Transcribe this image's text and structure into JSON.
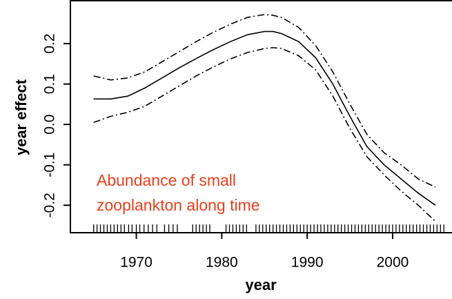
{
  "chart_data": {
    "type": "line",
    "x_label": "year",
    "y_label": "year effect",
    "annotation": [
      "Abundance of small",
      "zooplankton along time"
    ],
    "annotation_color": "#e8401c",
    "x": [
      1965,
      1967,
      1969,
      1971,
      1973,
      1975,
      1977,
      1979,
      1981,
      1983,
      1985,
      1986,
      1987,
      1989,
      1991,
      1993,
      1995,
      1997,
      1999,
      2001,
      2003,
      2005
    ],
    "series": [
      {
        "name": "fit",
        "color": "#000000",
        "dash": "solid",
        "values": [
          0.063,
          0.063,
          0.07,
          0.09,
          0.115,
          0.14,
          0.163,
          0.185,
          0.205,
          0.222,
          0.23,
          0.23,
          0.225,
          0.205,
          0.165,
          0.1,
          0.02,
          -0.055,
          -0.1,
          -0.135,
          -0.17,
          -0.2
        ]
      },
      {
        "name": "upper",
        "color": "#000000",
        "dash": "dashdot",
        "values": [
          0.12,
          0.11,
          0.115,
          0.13,
          0.155,
          0.18,
          0.205,
          0.228,
          0.248,
          0.265,
          0.272,
          0.27,
          0.265,
          0.24,
          0.195,
          0.13,
          0.05,
          -0.025,
          -0.07,
          -0.1,
          -0.135,
          -0.155
        ]
      },
      {
        "name": "lower",
        "color": "#000000",
        "dash": "dashdot",
        "values": [
          0.005,
          0.02,
          0.03,
          0.045,
          0.07,
          0.095,
          0.12,
          0.142,
          0.162,
          0.178,
          0.188,
          0.19,
          0.188,
          0.17,
          0.135,
          0.07,
          -0.01,
          -0.08,
          -0.125,
          -0.165,
          -0.2,
          -0.24
        ]
      }
    ],
    "rug": [
      1965,
      1965.4,
      1965.8,
      1966.2,
      1966.6,
      1967,
      1967.4,
      1967.8,
      1968.2,
      1968.6,
      1969.1,
      1969.5,
      1970,
      1970.4,
      1970.9,
      1971.4,
      1971.9,
      1972.4,
      1973.3,
      1973.8,
      1974.3,
      1974.8,
      1976.6,
      1977,
      1977.4,
      1977.8,
      1978.2,
      1978.6,
      1980.5,
      1980.9,
      1981.3,
      1981.7,
      1982.1,
      1982.5,
      1982.9,
      1984,
      1984.4,
      1984.8,
      1985.2,
      1985.6,
      1986,
      1986.4,
      1986.8,
      1987.2,
      1987.6,
      1988,
      1988.4,
      1988.8,
      1989.2,
      1989.6,
      1990,
      1990.4,
      1990.8,
      1991.2,
      1991.6,
      1992,
      1992.4,
      1992.8,
      1993.2,
      1993.6,
      1994,
      1994.4,
      1994.8,
      1995.2,
      1995.6,
      1996,
      1996.4,
      1996.8,
      1997.2,
      1997.6,
      1998,
      1998.4,
      1998.8,
      1999.2,
      1999.6,
      2000,
      2000.4,
      2000.8,
      2001.2,
      2001.6,
      2002,
      2002.4,
      2002.8,
      2003.2,
      2003.6,
      2004,
      2004.4,
      2004.8,
      2005.2,
      2005.6,
      2006
    ],
    "xlim": [
      1962.2,
      2006.95
    ],
    "ylim": [
      -0.268,
      0.308
    ],
    "xticks": [
      1970,
      1980,
      1990,
      2000
    ],
    "yticks": [
      0.2,
      0.1,
      {
        "value": 0,
        "label": "0.0"
      },
      -0.1,
      -0.2
    ]
  }
}
